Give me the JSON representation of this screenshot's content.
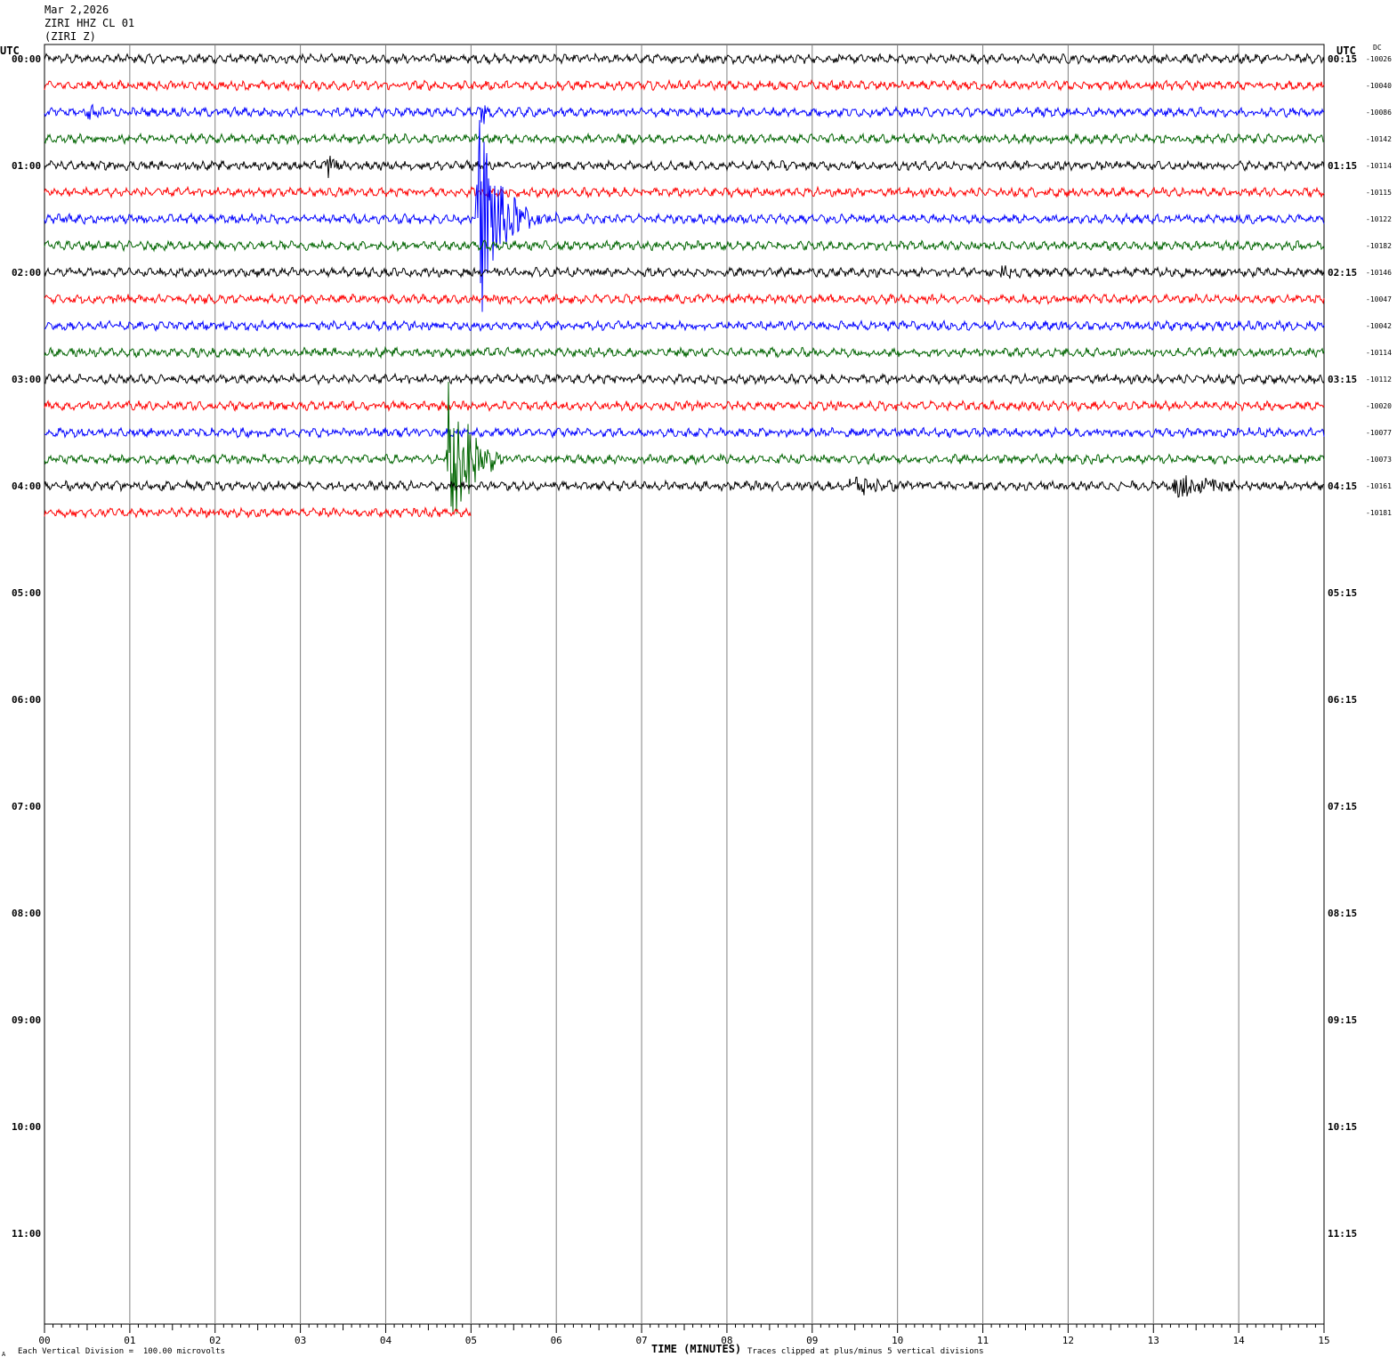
{
  "header": {
    "date": "Mar 2,2026",
    "station": "ZIRI HHZ CL 01",
    "channel": "(ZIRI Z)"
  },
  "left_utc_label": "UTC",
  "right_utc_label": "UTC",
  "dc_label": "DC",
  "footer": {
    "scale_note": "Each Vertical Division =  100.00 microvolts",
    "clip_note": "Traces clipped at plus/minus 5 vertical divisions",
    "corner_mark": "A"
  },
  "colors": {
    "black": "#000000",
    "red": "#ff0000",
    "blue": "#0000ff",
    "green": "#006400",
    "grid": "#808080"
  },
  "chart_data": {
    "type": "line",
    "xlabel": "TIME (MINUTES)",
    "x_ticks": [
      "00",
      "01",
      "02",
      "03",
      "04",
      "05",
      "06",
      "07",
      "08",
      "09",
      "10",
      "11",
      "12",
      "13",
      "14",
      "15"
    ],
    "xlim": [
      0,
      15
    ],
    "left_hour_labels": [
      "00:00",
      "01:00",
      "02:00",
      "03:00",
      "04:00",
      "05:00",
      "06:00",
      "07:00",
      "08:00",
      "09:00",
      "10:00",
      "11:00"
    ],
    "right_hour_labels": [
      "00:15",
      "01:15",
      "02:15",
      "03:15",
      "04:15",
      "05:15",
      "06:15",
      "07:15",
      "08:15",
      "09:15",
      "10:15",
      "11:15"
    ],
    "trace_colors": [
      "black",
      "red",
      "blue",
      "green"
    ],
    "traces": [
      {
        "start": "00:00",
        "dc": "-10026",
        "color": "black",
        "end_min": 15
      },
      {
        "start": "00:15",
        "dc": "-10040",
        "color": "red",
        "end_min": 15
      },
      {
        "start": "00:30",
        "dc": "-10086",
        "color": "blue",
        "end_min": 15
      },
      {
        "start": "00:45",
        "dc": "-10142",
        "color": "green",
        "end_min": 15
      },
      {
        "start": "01:00",
        "dc": "-10114",
        "color": "black",
        "end_min": 15
      },
      {
        "start": "01:15",
        "dc": "-10115",
        "color": "red",
        "end_min": 15
      },
      {
        "start": "01:30",
        "dc": "-10122",
        "color": "blue",
        "end_min": 15
      },
      {
        "start": "01:45",
        "dc": "-10182",
        "color": "green",
        "end_min": 15
      },
      {
        "start": "02:00",
        "dc": "-10146",
        "color": "black",
        "end_min": 15
      },
      {
        "start": "02:15",
        "dc": "-10047",
        "color": "red",
        "end_min": 15
      },
      {
        "start": "02:30",
        "dc": "-10042",
        "color": "blue",
        "end_min": 15
      },
      {
        "start": "02:45",
        "dc": "-10114",
        "color": "green",
        "end_min": 15
      },
      {
        "start": "03:00",
        "dc": "-10112",
        "color": "black",
        "end_min": 15
      },
      {
        "start": "03:15",
        "dc": "-10020",
        "color": "red",
        "end_min": 15
      },
      {
        "start": "03:30",
        "dc": "-10077",
        "color": "blue",
        "end_min": 15
      },
      {
        "start": "03:45",
        "dc": "-10073",
        "color": "green",
        "end_min": 15
      },
      {
        "start": "04:00",
        "dc": "-10161",
        "color": "black",
        "end_min": 15
      },
      {
        "start": "04:15",
        "dc": "-10181",
        "color": "red",
        "end_min": 5
      }
    ],
    "events": [
      {
        "trace": 2,
        "minute": 0.5,
        "amp": 0.45,
        "dur": 0.4
      },
      {
        "trace": 2,
        "minute": 5.1,
        "amp": 0.8,
        "dur": 0.3
      },
      {
        "trace": 4,
        "minute": 3.3,
        "amp": 0.6,
        "dur": 0.4
      },
      {
        "trace": 6,
        "minute": 5.05,
        "amp": 5,
        "dur": 1.0
      },
      {
        "trace": 8,
        "minute": 11.2,
        "amp": 0.3,
        "dur": 0.4
      },
      {
        "trace": 10,
        "minute": 11.9,
        "amp": 0.3,
        "dur": 0.2
      },
      {
        "trace": 15,
        "minute": 4.7,
        "amp": 5,
        "dur": 0.8
      },
      {
        "trace": 16,
        "minute": 9.4,
        "amp": 0.5,
        "dur": 1.2
      },
      {
        "trace": 16,
        "minute": 13.2,
        "amp": 0.6,
        "dur": 1.8
      }
    ]
  }
}
